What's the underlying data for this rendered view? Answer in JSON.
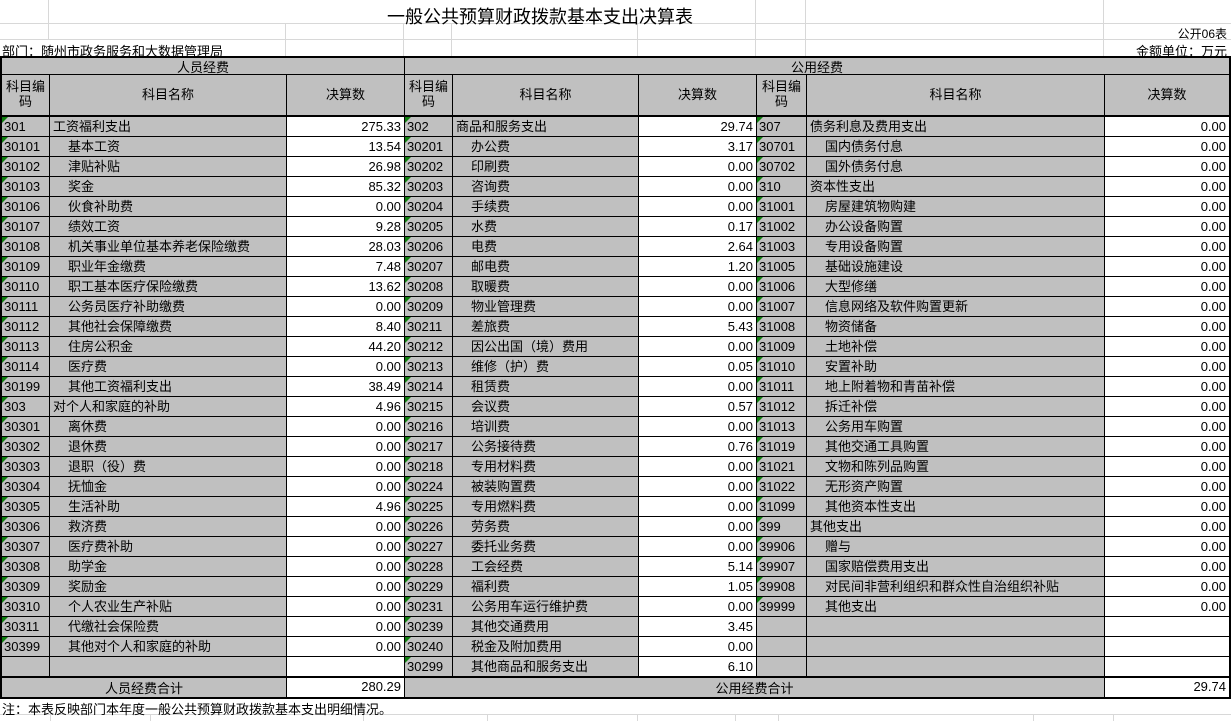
{
  "title": "一般公共预算财政拨款基本支出决算表",
  "meta": {
    "sheet_label": "公开06表",
    "department": "部门：随州市政务服务和大数据管理局",
    "unit_label": "金额单位：万元"
  },
  "table": {
    "sections": [
      {
        "label": "人员经费"
      },
      {
        "label": "公用经费"
      }
    ],
    "column_headers": {
      "code": "科目编码",
      "name": "科目名称",
      "value": "决算数"
    },
    "columns": [
      {
        "rows": [
          {
            "code": "301",
            "name": "工资福利支出",
            "value": "275.33"
          },
          {
            "code": "30101",
            "name": "基本工资",
            "value": "13.54"
          },
          {
            "code": "30102",
            "name": "津贴补贴",
            "value": "26.98"
          },
          {
            "code": "30103",
            "name": "奖金",
            "value": "85.32"
          },
          {
            "code": "30106",
            "name": "伙食补助费",
            "value": "0.00"
          },
          {
            "code": "30107",
            "name": "绩效工资",
            "value": "9.28"
          },
          {
            "code": "30108",
            "name": "机关事业单位基本养老保险缴费",
            "value": "28.03"
          },
          {
            "code": "30109",
            "name": "职业年金缴费",
            "value": "7.48"
          },
          {
            "code": "30110",
            "name": "职工基本医疗保险缴费",
            "value": "13.62"
          },
          {
            "code": "30111",
            "name": "公务员医疗补助缴费",
            "value": "0.00"
          },
          {
            "code": "30112",
            "name": "其他社会保障缴费",
            "value": "8.40"
          },
          {
            "code": "30113",
            "name": "住房公积金",
            "value": "44.20"
          },
          {
            "code": "30114",
            "name": "医疗费",
            "value": "0.00"
          },
          {
            "code": "30199",
            "name": "其他工资福利支出",
            "value": "38.49"
          },
          {
            "code": "303",
            "name": "对个人和家庭的补助",
            "value": "4.96"
          },
          {
            "code": "30301",
            "name": "离休费",
            "value": "0.00"
          },
          {
            "code": "30302",
            "name": "退休费",
            "value": "0.00"
          },
          {
            "code": "30303",
            "name": "退职（役）费",
            "value": "0.00"
          },
          {
            "code": "30304",
            "name": "抚恤金",
            "value": "0.00"
          },
          {
            "code": "30305",
            "name": "生活补助",
            "value": "4.96"
          },
          {
            "code": "30306",
            "name": "救济费",
            "value": "0.00"
          },
          {
            "code": "30307",
            "name": "医疗费补助",
            "value": "0.00"
          },
          {
            "code": "30308",
            "name": "助学金",
            "value": "0.00"
          },
          {
            "code": "30309",
            "name": "奖励金",
            "value": "0.00"
          },
          {
            "code": "30310",
            "name": "个人农业生产补贴",
            "value": "0.00"
          },
          {
            "code": "30311",
            "name": "代缴社会保险费",
            "value": "0.00"
          },
          {
            "code": "30399",
            "name": "其他对个人和家庭的补助",
            "value": "0.00"
          },
          {
            "code": "",
            "name": "",
            "value": ""
          }
        ]
      },
      {
        "rows": [
          {
            "code": "302",
            "name": "商品和服务支出",
            "value": "29.74"
          },
          {
            "code": "30201",
            "name": "办公费",
            "value": "3.17"
          },
          {
            "code": "30202",
            "name": "印刷费",
            "value": "0.00"
          },
          {
            "code": "30203",
            "name": "咨询费",
            "value": "0.00"
          },
          {
            "code": "30204",
            "name": "手续费",
            "value": "0.00"
          },
          {
            "code": "30205",
            "name": "水费",
            "value": "0.17"
          },
          {
            "code": "30206",
            "name": "电费",
            "value": "2.64"
          },
          {
            "code": "30207",
            "name": "邮电费",
            "value": "1.20"
          },
          {
            "code": "30208",
            "name": "取暖费",
            "value": "0.00"
          },
          {
            "code": "30209",
            "name": "物业管理费",
            "value": "0.00"
          },
          {
            "code": "30211",
            "name": "差旅费",
            "value": "5.43"
          },
          {
            "code": "30212",
            "name": "因公出国（境）费用",
            "value": "0.00"
          },
          {
            "code": "30213",
            "name": "维修（护）费",
            "value": "0.05"
          },
          {
            "code": "30214",
            "name": "租赁费",
            "value": "0.00"
          },
          {
            "code": "30215",
            "name": "会议费",
            "value": "0.57"
          },
          {
            "code": "30216",
            "name": "培训费",
            "value": "0.00"
          },
          {
            "code": "30217",
            "name": "公务接待费",
            "value": "0.76"
          },
          {
            "code": "30218",
            "name": "专用材料费",
            "value": "0.00"
          },
          {
            "code": "30224",
            "name": "被装购置费",
            "value": "0.00"
          },
          {
            "code": "30225",
            "name": "专用燃料费",
            "value": "0.00"
          },
          {
            "code": "30226",
            "name": "劳务费",
            "value": "0.00"
          },
          {
            "code": "30227",
            "name": "委托业务费",
            "value": "0.00"
          },
          {
            "code": "30228",
            "name": "工会经费",
            "value": "5.14"
          },
          {
            "code": "30229",
            "name": "福利费",
            "value": "1.05"
          },
          {
            "code": "30231",
            "name": "公务用车运行维护费",
            "value": "0.00"
          },
          {
            "code": "30239",
            "name": "其他交通费用",
            "value": "3.45"
          },
          {
            "code": "30240",
            "name": "税金及附加费用",
            "value": "0.00"
          },
          {
            "code": "30299",
            "name": "其他商品和服务支出",
            "value": "6.10"
          }
        ]
      },
      {
        "rows": [
          {
            "code": "307",
            "name": "债务利息及费用支出",
            "value": "0.00"
          },
          {
            "code": "30701",
            "name": "国内债务付息",
            "value": "0.00"
          },
          {
            "code": "30702",
            "name": "国外债务付息",
            "value": "0.00"
          },
          {
            "code": "310",
            "name": "资本性支出",
            "value": "0.00"
          },
          {
            "code": "31001",
            "name": "房屋建筑物购建",
            "value": "0.00"
          },
          {
            "code": "31002",
            "name": "办公设备购置",
            "value": "0.00"
          },
          {
            "code": "31003",
            "name": "专用设备购置",
            "value": "0.00"
          },
          {
            "code": "31005",
            "name": "基础设施建设",
            "value": "0.00"
          },
          {
            "code": "31006",
            "name": "大型修缮",
            "value": "0.00"
          },
          {
            "code": "31007",
            "name": "信息网络及软件购置更新",
            "value": "0.00"
          },
          {
            "code": "31008",
            "name": "物资储备",
            "value": "0.00"
          },
          {
            "code": "31009",
            "name": "土地补偿",
            "value": "0.00"
          },
          {
            "code": "31010",
            "name": "安置补助",
            "value": "0.00"
          },
          {
            "code": "31011",
            "name": "地上附着物和青苗补偿",
            "value": "0.00"
          },
          {
            "code": "31012",
            "name": "拆迁补偿",
            "value": "0.00"
          },
          {
            "code": "31013",
            "name": "公务用车购置",
            "value": "0.00"
          },
          {
            "code": "31019",
            "name": "其他交通工具购置",
            "value": "0.00"
          },
          {
            "code": "31021",
            "name": "文物和陈列品购置",
            "value": "0.00"
          },
          {
            "code": "31022",
            "name": "无形资产购置",
            "value": "0.00"
          },
          {
            "code": "31099",
            "name": "其他资本性支出",
            "value": "0.00"
          },
          {
            "code": "399",
            "name": "其他支出",
            "value": "0.00"
          },
          {
            "code": "39906",
            "name": "赠与",
            "value": "0.00"
          },
          {
            "code": "39907",
            "name": "国家赔偿费用支出",
            "value": "0.00"
          },
          {
            "code": "39908",
            "name": "对民间非营利组织和群众性自治组织补贴",
            "value": "0.00"
          },
          {
            "code": "39999",
            "name": "其他支出",
            "value": "0.00"
          },
          {
            "code": "",
            "name": "",
            "value": ""
          },
          {
            "code": "",
            "name": "",
            "value": ""
          },
          {
            "code": "",
            "name": "",
            "value": ""
          }
        ]
      }
    ],
    "totals": {
      "personnel": {
        "label": "人员经费合计",
        "value": "280.29"
      },
      "public": {
        "label": "公用经费合计",
        "value": "29.74"
      }
    }
  },
  "note": "注：本表反映部门本年度一般公共预算财政拨款基本支出明细情况。",
  "colors": {
    "cell_gray": "#c0c0c0",
    "triangle_green": "#0e7e0e",
    "border_black": "#000000",
    "gridline_gray": "#d8d8d8"
  }
}
